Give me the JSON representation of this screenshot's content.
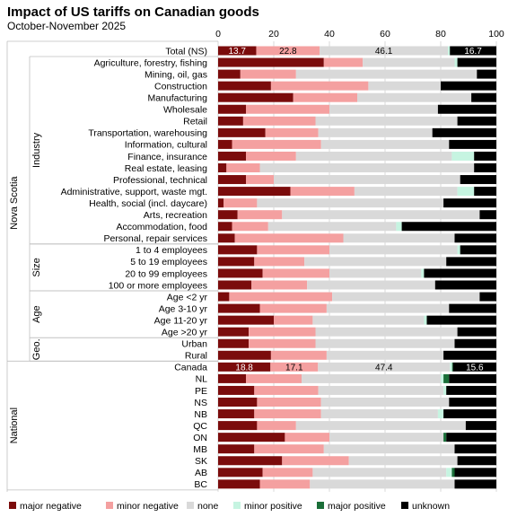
{
  "chart_data": {
    "type": "bar",
    "orientation": "horizontal",
    "stacked": true,
    "title": "Impact of US tariffs on Canadian goods",
    "subtitle": "October-November 2025",
    "xlim": [
      0,
      100
    ],
    "xticks": [
      0,
      20,
      40,
      60,
      80,
      100
    ],
    "grid": true,
    "legend_position": "bottom",
    "series": [
      {
        "name": "major negative",
        "color": "#7b0c0c"
      },
      {
        "name": "minor negative",
        "color": "#f4a0a0"
      },
      {
        "name": "none",
        "color": "#d9d9d9"
      },
      {
        "name": "minor positive",
        "color": "#c6f4e1"
      },
      {
        "name": "major positive",
        "color": "#1a6e38"
      },
      {
        "name": "unknown",
        "color": "#000000"
      }
    ],
    "groups": [
      {
        "label": "Nova Scotia",
        "subgroups": [
          {
            "label": "",
            "rows": [
              {
                "label": "Total (NS)",
                "values": [
                  13.7,
                  22.8,
                  46.1,
                  0.7,
                  0,
                  16.7
                ],
                "data_labels": [
                  "13.7",
                  "22.8",
                  "46.1",
                  "",
                  "",
                  "16.7"
                ]
              }
            ]
          },
          {
            "label": "Industry",
            "rows": [
              {
                "label": "Agriculture, forestry, fishing",
                "values": [
                  38,
                  14,
                  33,
                  1,
                  0,
                  14
                ]
              },
              {
                "label": "Mining, oil, gas",
                "values": [
                  8,
                  20,
                  65,
                  0,
                  0,
                  7
                ]
              },
              {
                "label": "Construction",
                "values": [
                  19,
                  35,
                  26,
                  0,
                  0,
                  20
                ]
              },
              {
                "label": "Manufacturing",
                "values": [
                  27,
                  23,
                  41,
                  0,
                  0,
                  9
                ]
              },
              {
                "label": "Wholesale",
                "values": [
                  10,
                  30,
                  39,
                  0,
                  0,
                  21
                ]
              },
              {
                "label": "Retail",
                "values": [
                  9,
                  26,
                  51,
                  0,
                  0,
                  14
                ]
              },
              {
                "label": "Transportation, warehousing",
                "values": [
                  17,
                  19,
                  41,
                  0,
                  0,
                  23
                ]
              },
              {
                "label": "Information, cultural",
                "values": [
                  5,
                  32,
                  46,
                  0,
                  0,
                  17
                ]
              },
              {
                "label": "Finance, insurance",
                "values": [
                  10,
                  18,
                  56,
                  8,
                  0,
                  8
                ]
              },
              {
                "label": "Real estate, leasing",
                "values": [
                  3,
                  12,
                  77,
                  0,
                  0,
                  8
                ]
              },
              {
                "label": "Professional, technical",
                "values": [
                  10,
                  10,
                  67,
                  0,
                  0,
                  13
                ]
              },
              {
                "label": "Administrative, support, waste mgt.",
                "values": [
                  26,
                  23,
                  37,
                  6,
                  0,
                  8
                ]
              },
              {
                "label": "Health, social (incl. daycare)",
                "values": [
                  2,
                  12,
                  67,
                  0,
                  0,
                  19
                ]
              },
              {
                "label": "Arts, recreation",
                "values": [
                  7,
                  16,
                  71,
                  0,
                  0,
                  6
                ]
              },
              {
                "label": "Accommodation, food",
                "values": [
                  5,
                  13,
                  46,
                  2,
                  0,
                  34
                ]
              },
              {
                "label": "Personal, repair services",
                "values": [
                  6,
                  39,
                  40,
                  0,
                  0,
                  15
                ]
              }
            ]
          },
          {
            "label": "Size",
            "rows": [
              {
                "label": "1 to 4 employees",
                "values": [
                  14,
                  26,
                  46,
                  1,
                  0,
                  13
                ]
              },
              {
                "label": "5 to 19 employees",
                "values": [
                  13,
                  18,
                  51,
                  0,
                  0,
                  18
                ]
              },
              {
                "label": "20 to 99 employees",
                "values": [
                  16,
                  24,
                  33,
                  1,
                  0,
                  26
                ]
              },
              {
                "label": "100 or more employees",
                "values": [
                  12,
                  20,
                  46,
                  0,
                  0,
                  22
                ]
              }
            ]
          },
          {
            "label": "Age",
            "rows": [
              {
                "label": "Age <2 yr",
                "values": [
                  4,
                  37,
                  53,
                  0,
                  0,
                  6
                ]
              },
              {
                "label": "Age 3-10 yr",
                "values": [
                  15,
                  24,
                  44,
                  0,
                  0,
                  17
                ]
              },
              {
                "label": "Age 11-20 yr",
                "values": [
                  20,
                  14,
                  40,
                  1,
                  0,
                  25
                ]
              },
              {
                "label": "Age >20 yr",
                "values": [
                  11,
                  24,
                  51,
                  0,
                  0,
                  14
                ]
              }
            ]
          },
          {
            "label": "Geo.",
            "rows": [
              {
                "label": "Urban",
                "values": [
                  11,
                  24,
                  50,
                  0,
                  0,
                  15
                ]
              },
              {
                "label": "Rural",
                "values": [
                  19,
                  20,
                  42,
                  0,
                  0,
                  19
                ]
              }
            ]
          }
        ]
      },
      {
        "label": "National",
        "subgroups": [
          {
            "label": "",
            "rows": [
              {
                "label": "Canada",
                "values": [
                  18.8,
                  17.1,
                  47.4,
                  0.8,
                  0.3,
                  15.6
                ],
                "data_labels": [
                  "18.8",
                  "17.1",
                  "47.4",
                  "",
                  "",
                  "15.6"
                ]
              },
              {
                "label": "NL",
                "values": [
                  10,
                  20,
                  50,
                  1,
                  2,
                  17
                ]
              },
              {
                "label": "PE",
                "values": [
                  13,
                  23,
                  45,
                  1,
                  0,
                  18
                ]
              },
              {
                "label": "NS",
                "values": [
                  14,
                  23,
                  46,
                  0,
                  0,
                  17
                ]
              },
              {
                "label": "NB",
                "values": [
                  13,
                  24,
                  42,
                  2,
                  0,
                  19
                ]
              },
              {
                "label": "QC",
                "values": [
                  14,
                  14,
                  61,
                  0,
                  0,
                  11
                ]
              },
              {
                "label": "ON",
                "values": [
                  24,
                  16,
                  41,
                  0,
                  1,
                  18
                ]
              },
              {
                "label": "MB",
                "values": [
                  13,
                  25,
                  47,
                  0,
                  0,
                  15
                ]
              },
              {
                "label": "SK",
                "values": [
                  23,
                  24,
                  39,
                  0,
                  0,
                  14
                ]
              },
              {
                "label": "AB",
                "values": [
                  16,
                  18,
                  48,
                  2,
                  1,
                  15
                ]
              },
              {
                "label": "BC",
                "values": [
                  15,
                  18,
                  52,
                  0,
                  0,
                  15
                ]
              }
            ]
          }
        ]
      }
    ]
  }
}
